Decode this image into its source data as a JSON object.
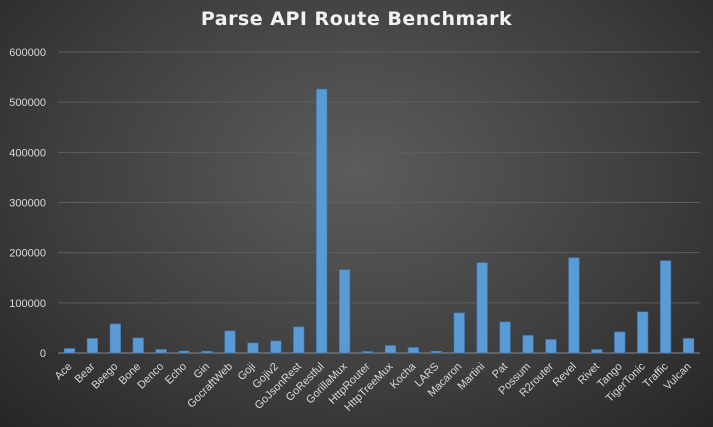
{
  "chart_data": {
    "type": "bar",
    "title": "Parse API Route Benchmark",
    "xlabel": "",
    "ylabel": "",
    "ylim": [
      0,
      600000
    ],
    "yticks": [
      "0",
      "100000",
      "200000",
      "300000",
      "400000",
      "500000",
      "600000"
    ],
    "grid": true,
    "legend": "none",
    "bar_color": "#5b9bd5",
    "categories": [
      "Ace",
      "Bear",
      "Beego",
      "Bone",
      "Denco",
      "Echo",
      "Gin",
      "GocraftWeb",
      "Goji",
      "Gojiv2",
      "GoJsonRest",
      "GoRestful",
      "GorillaMux",
      "HttpRouter",
      "HttpTreeMux",
      "Kocha",
      "LARS",
      "Macaron",
      "Martini",
      "Pat",
      "Possum",
      "R2router",
      "Revel",
      "Rivet",
      "Tango",
      "TigerTonic",
      "Traffic",
      "Vulcan"
    ],
    "values": [
      9000,
      29000,
      58000,
      30000,
      7000,
      4000,
      3500,
      44000,
      20000,
      24000,
      52000,
      526000,
      166000,
      3000,
      15000,
      11000,
      3500,
      80000,
      180000,
      62000,
      35000,
      27000,
      190000,
      7000,
      42000,
      82000,
      184000,
      29000
    ]
  }
}
